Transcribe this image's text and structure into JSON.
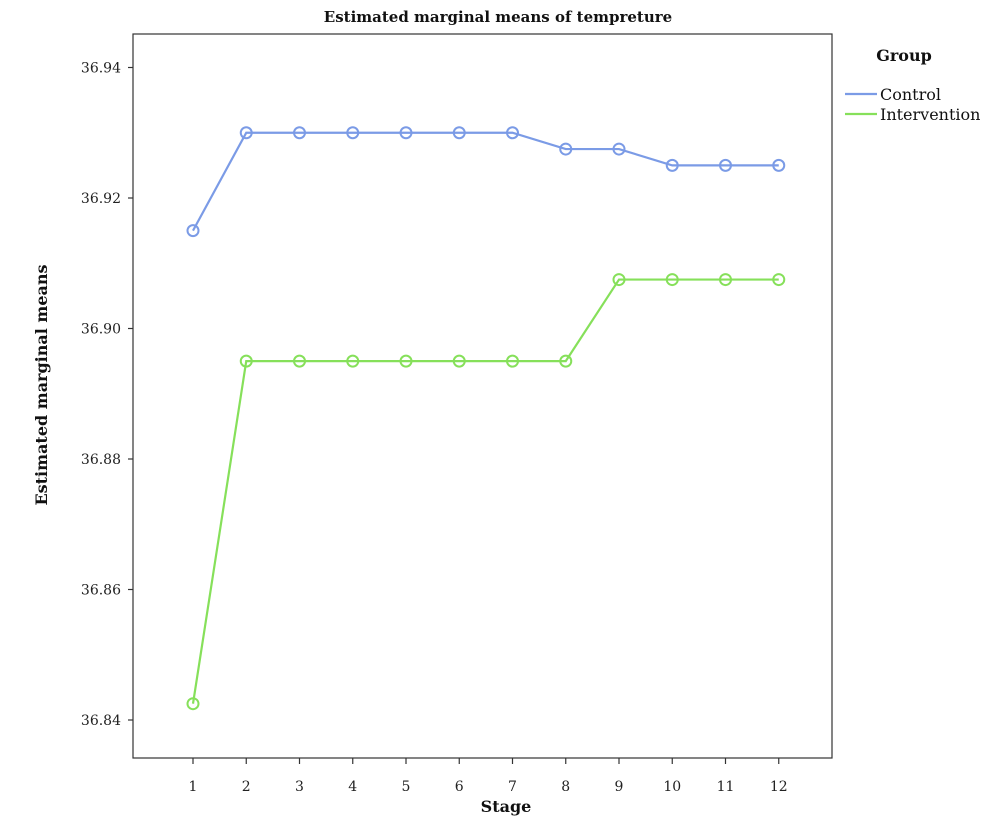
{
  "chart_data": {
    "type": "line",
    "title": "Estimated marginal means of tempreture",
    "xlabel": "Stage",
    "ylabel": "Estimated marginal means",
    "categories": [
      "1",
      "2",
      "3",
      "4",
      "5",
      "6",
      "7",
      "8",
      "9",
      "10",
      "11",
      "12"
    ],
    "ylim": [
      36.835,
      36.945
    ],
    "yticks": [
      "36.84",
      "36.86",
      "36.88",
      "36.90",
      "36.92",
      "36.94"
    ],
    "grid": false,
    "legend_title": "Group",
    "legend_position": "right",
    "series": [
      {
        "name": "Control",
        "color": "#7b9be6",
        "values": [
          36.915,
          36.93,
          36.93,
          36.93,
          36.93,
          36.93,
          36.93,
          36.9275,
          36.9275,
          36.925,
          36.925,
          36.925
        ]
      },
      {
        "name": "Intervention",
        "color": "#86e05a",
        "values": [
          36.8425,
          36.895,
          36.895,
          36.895,
          36.895,
          36.895,
          36.895,
          36.895,
          36.9075,
          36.9075,
          36.9075,
          36.9075
        ]
      }
    ]
  }
}
